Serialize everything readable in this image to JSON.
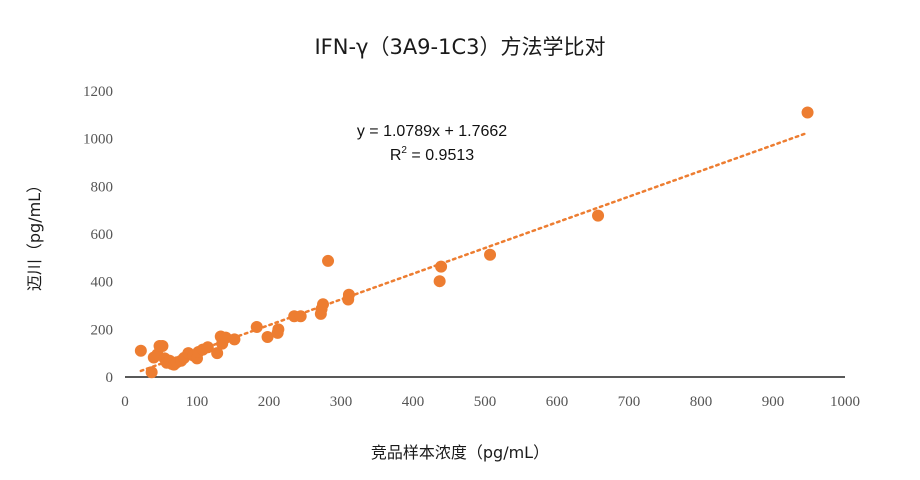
{
  "chart_data": {
    "type": "scatter",
    "title": "IFN-γ（3A9-1C3）方法学比对",
    "xlabel": "竞品样本浓度（pg/mL）",
    "ylabel": "迈川（pg/mL）",
    "xlim": [
      0,
      1000
    ],
    "ylim": [
      0,
      1200
    ],
    "xticks": [
      "0",
      "100",
      "200",
      "300",
      "400",
      "500",
      "600",
      "700",
      "800",
      "900",
      "1000"
    ],
    "yticks": [
      "0",
      "200",
      "400",
      "600",
      "800",
      "1000",
      "1200"
    ],
    "grid": false,
    "legend": "none",
    "marker_color": "#ED7D31",
    "trendline": {
      "slope": 1.0789,
      "intercept": 1.7662,
      "x_range": [
        22,
        948
      ],
      "equation": "y = 1.0789x + 1.7662",
      "r2_prefix": "R",
      "r2_exp": "2",
      "r2_value": " = 0.9513",
      "color": "#ED7D31"
    },
    "points": [
      {
        "x": 22,
        "y": 110
      },
      {
        "x": 37,
        "y": 20
      },
      {
        "x": 40,
        "y": 82
      },
      {
        "x": 45,
        "y": 95
      },
      {
        "x": 48,
        "y": 130
      },
      {
        "x": 52,
        "y": 130
      },
      {
        "x": 55,
        "y": 78
      },
      {
        "x": 58,
        "y": 60
      },
      {
        "x": 62,
        "y": 68
      },
      {
        "x": 65,
        "y": 55
      },
      {
        "x": 68,
        "y": 52
      },
      {
        "x": 72,
        "y": 62
      },
      {
        "x": 78,
        "y": 68
      },
      {
        "x": 82,
        "y": 80
      },
      {
        "x": 88,
        "y": 100
      },
      {
        "x": 95,
        "y": 90
      },
      {
        "x": 100,
        "y": 78
      },
      {
        "x": 102,
        "y": 105
      },
      {
        "x": 108,
        "y": 115
      },
      {
        "x": 115,
        "y": 125
      },
      {
        "x": 128,
        "y": 100
      },
      {
        "x": 133,
        "y": 170
      },
      {
        "x": 135,
        "y": 140
      },
      {
        "x": 140,
        "y": 165
      },
      {
        "x": 152,
        "y": 158
      },
      {
        "x": 183,
        "y": 210
      },
      {
        "x": 198,
        "y": 168
      },
      {
        "x": 212,
        "y": 185
      },
      {
        "x": 213,
        "y": 200
      },
      {
        "x": 235,
        "y": 255
      },
      {
        "x": 244,
        "y": 255
      },
      {
        "x": 272,
        "y": 265
      },
      {
        "x": 273,
        "y": 285
      },
      {
        "x": 275,
        "y": 305
      },
      {
        "x": 282,
        "y": 487
      },
      {
        "x": 310,
        "y": 325
      },
      {
        "x": 311,
        "y": 345
      },
      {
        "x": 437,
        "y": 402
      },
      {
        "x": 439,
        "y": 463
      },
      {
        "x": 507,
        "y": 513
      },
      {
        "x": 657,
        "y": 677
      },
      {
        "x": 948,
        "y": 1110
      }
    ]
  }
}
